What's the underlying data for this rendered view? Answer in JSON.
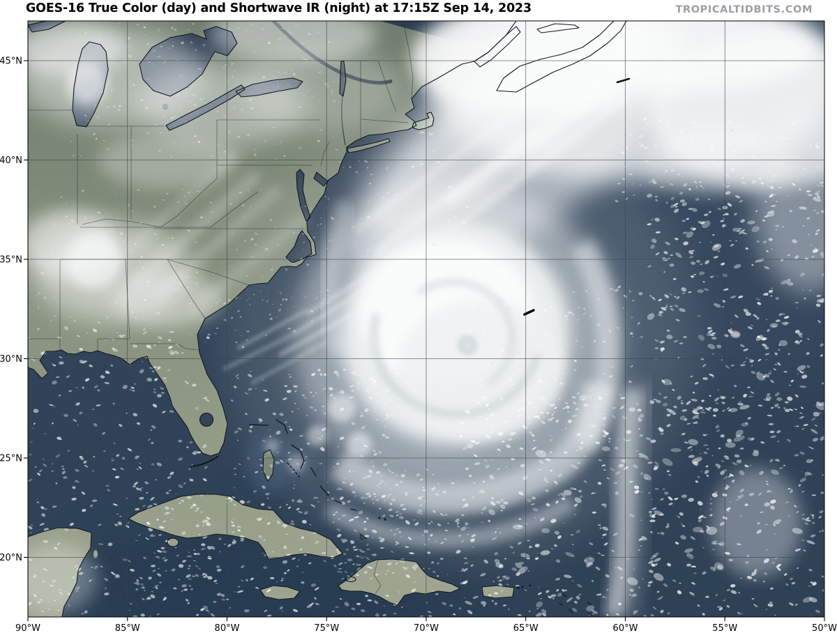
{
  "title": "GOES-16 True Color (day) and Shortwave IR (night) at 17:15Z Sep 14, 2023",
  "watermark": "TROPICALTIDBITS.COM",
  "map": {
    "lat_range": [
      17,
      47
    ],
    "lon_range": [
      -90,
      -50
    ],
    "lat_ticks": [
      {
        "label": "45°N",
        "value": 45
      },
      {
        "label": "40°N",
        "value": 40
      },
      {
        "label": "35°N",
        "value": 35
      },
      {
        "label": "30°N",
        "value": 30
      },
      {
        "label": "25°N",
        "value": 25
      },
      {
        "label": "20°N",
        "value": 20
      }
    ],
    "lon_ticks": [
      {
        "label": "90°W",
        "value": -90
      },
      {
        "label": "85°W",
        "value": -85
      },
      {
        "label": "80°W",
        "value": -80
      },
      {
        "label": "75°W",
        "value": -75
      },
      {
        "label": "70°W",
        "value": -70
      },
      {
        "label": "65°W",
        "value": -65
      },
      {
        "label": "60°W",
        "value": -60
      },
      {
        "label": "55°W",
        "value": -55
      },
      {
        "label": "50°W",
        "value": -50
      }
    ],
    "colors": {
      "ocean": "#2d3f55",
      "land": "#87907c",
      "cloud": "#f4f6f6",
      "grid": "#3c4046",
      "coastline": "#0a0f15",
      "title_text": "#000000",
      "watermark_text": "#9aa0a5"
    }
  }
}
